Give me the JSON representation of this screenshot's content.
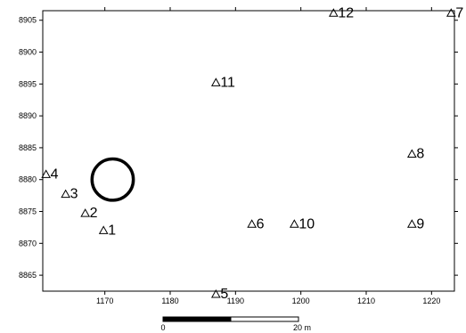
{
  "chart_data": {
    "type": "scatter",
    "title": "",
    "xlabel": "",
    "ylabel": "",
    "xlim": [
      1160.5,
      1223.5
    ],
    "ylim": [
      8862.5,
      8906.5
    ],
    "x_ticks": [
      1170,
      1180,
      1190,
      1200,
      1210,
      1220
    ],
    "y_ticks": [
      8865,
      8870,
      8875,
      8880,
      8885,
      8890,
      8895,
      8900,
      8905
    ],
    "grid": false,
    "marker": "triangle-outline",
    "points": [
      {
        "label": "1",
        "x": 1169.8,
        "y": 8871.8
      },
      {
        "label": "2",
        "x": 1167.0,
        "y": 8874.5
      },
      {
        "label": "3",
        "x": 1164.0,
        "y": 8877.5
      },
      {
        "label": "4",
        "x": 1161.0,
        "y": 8880.6
      },
      {
        "label": "5",
        "x": 1187.0,
        "y": 8861.8
      },
      {
        "label": "6",
        "x": 1192.5,
        "y": 8872.8
      },
      {
        "label": "7",
        "x": 1223.0,
        "y": 8905.9
      },
      {
        "label": "8",
        "x": 1217.0,
        "y": 8883.8
      },
      {
        "label": "9",
        "x": 1217.0,
        "y": 8872.8
      },
      {
        "label": "10",
        "x": 1199.0,
        "y": 8872.8
      },
      {
        "label": "11",
        "x": 1187.0,
        "y": 8895.0
      },
      {
        "label": "12",
        "x": 1205.0,
        "y": 8905.9
      }
    ],
    "circle": {
      "x": 1171.2,
      "y": 8880.0,
      "radius": 3.2
    },
    "scalebar": {
      "start_label": "0",
      "end_label": "20 m",
      "length": 20
    }
  }
}
